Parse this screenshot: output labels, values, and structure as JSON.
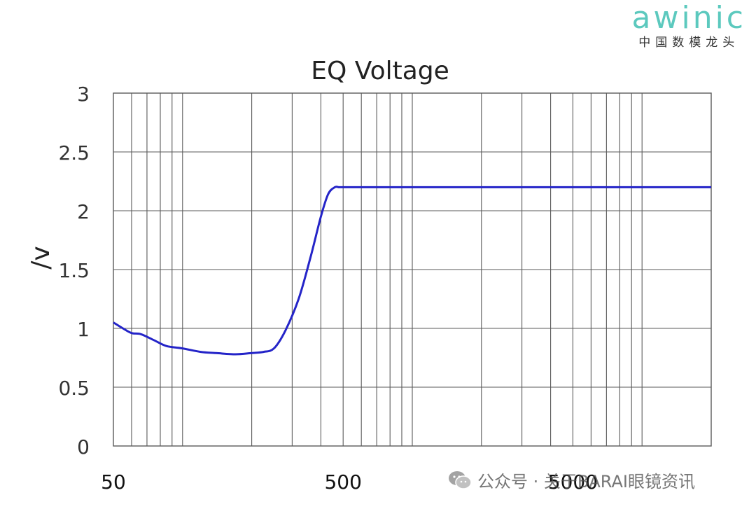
{
  "brand": {
    "name": "awinic",
    "tagline": "中国数模龙头"
  },
  "watermark": {
    "text": "公众号 · 关于BARAI眼镜资讯",
    "icon": "wechat-icon"
  },
  "colors": {
    "line": "#2424c8",
    "grid": "#5a5a5a",
    "brand": "#5cc9be"
  },
  "chart_data": {
    "type": "line",
    "title": "EQ Voltage",
    "xlabel": "",
    "ylabel": "/v",
    "x_scale": "log",
    "xlim": [
      50,
      20000
    ],
    "ylim": [
      0,
      3
    ],
    "grid": true,
    "x_tick_labels": [
      "50",
      "500",
      "5000"
    ],
    "x_tick_values": [
      50,
      500,
      5000
    ],
    "y_ticks": [
      0,
      0.5,
      1,
      1.5,
      2,
      2.5,
      3
    ],
    "y_tick_labels": [
      "0",
      "0.5",
      "1",
      "1.5",
      "2",
      "2.5",
      "3"
    ],
    "series": [
      {
        "name": "",
        "x": [
          50,
          55,
          60,
          66,
          75,
          85,
          100,
          120,
          140,
          170,
          200,
          225,
          250,
          280,
          320,
          360,
          400,
          430,
          460,
          480,
          500,
          600,
          1000,
          2000,
          5000,
          10000,
          20000
        ],
        "y": [
          1.05,
          1.0,
          0.96,
          0.95,
          0.9,
          0.85,
          0.83,
          0.8,
          0.79,
          0.78,
          0.79,
          0.8,
          0.83,
          0.98,
          1.25,
          1.6,
          1.95,
          2.14,
          2.2,
          2.2,
          2.2,
          2.2,
          2.2,
          2.2,
          2.2,
          2.2,
          2.2
        ]
      }
    ]
  }
}
